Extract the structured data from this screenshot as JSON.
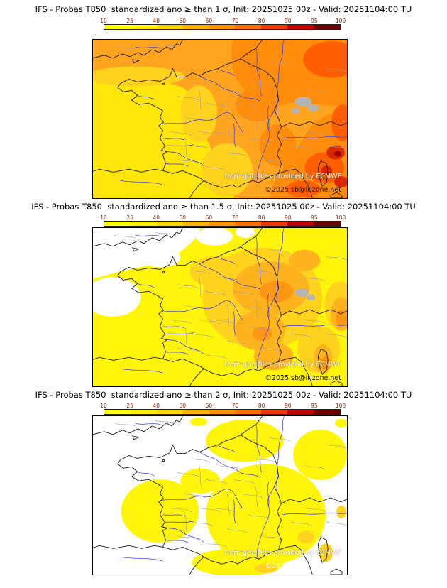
{
  "page": {
    "background": "#ffffff"
  },
  "colorbar": {
    "ticks": [
      "10",
      "25",
      "40",
      "50",
      "60",
      "70",
      "80",
      "90",
      "95",
      "100"
    ],
    "colors": [
      "#ffff00",
      "#ffee00",
      "#ffd500",
      "#ffb300",
      "#ff9400",
      "#ff6f00",
      "#ef3800",
      "#c40000",
      "#6f0000"
    ],
    "tick_color": "#8b2500"
  },
  "palette": {
    "yellow": "#fff50a",
    "yellow_deep": "#ffe60a",
    "orange_pale": "#ffd21e",
    "orange": "#ffb41e",
    "orange_mid": "#ffa41e",
    "orange_strong": "#ff9614",
    "orange_deep": "#ff8c0a",
    "red_orange": "#ff5f00",
    "red": "#dc2800",
    "dark_red": "#a00000",
    "gray_missing": "#b4b4b4",
    "white": "#ffffff"
  },
  "panels": [
    {
      "title": "IFS - Probas T850  standardized ano ≥ than 1 σ, Init: 20251025 00z - Valid: 20251104:00 TU",
      "threshold_sigma": "1",
      "credit_line1": "from grib files provided by ECMWF",
      "credit_line2": "©2025 sb@irizone.net",
      "credit2_style": "color:#141414"
    },
    {
      "title": "IFS - Probas T850  standardized ano ≥ than 1.5 σ, Init: 20251025 00z - Valid: 20251104:00 TU",
      "threshold_sigma": "1.5",
      "credit_line1": "from grib files provided by ECMWF",
      "credit_line2": "©2025 sb@irizone.net",
      "credit2_style": "color:#141414"
    },
    {
      "title": "IFS - Probas T850  standardized ano ≥ than 2 σ, Init: 20251025 00z - Valid: 20251104:00 TU",
      "threshold_sigma": "2",
      "credit_line1": "from grib files provided by ECMWF",
      "credit_line2": "©2025 sb@irizone.net",
      "credit2_style": "color:#ffffff"
    }
  ]
}
